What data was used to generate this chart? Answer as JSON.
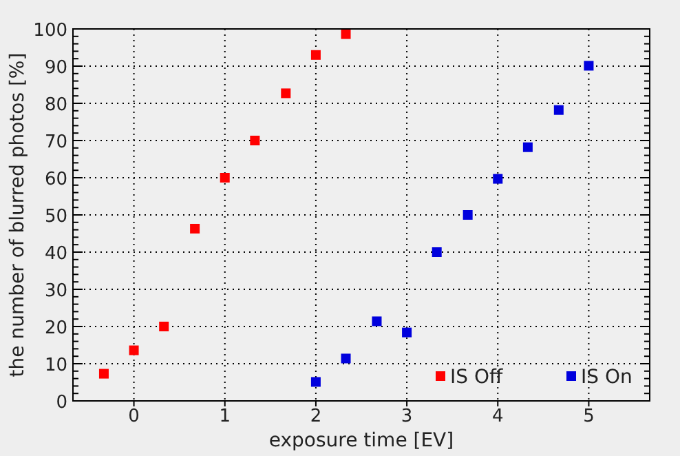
{
  "chart_data": {
    "type": "scatter",
    "xlabel": "exposure time [EV]",
    "ylabel": "the number of blurred photos [%]",
    "xlim": [
      -0.67,
      5.67
    ],
    "xticks": [
      0,
      1,
      2,
      3,
      4,
      5
    ],
    "ylim": [
      0,
      100
    ],
    "yticks": [
      0,
      10,
      20,
      30,
      40,
      50,
      60,
      70,
      80,
      90,
      100
    ],
    "grid": true,
    "legend": "bottom right",
    "marker": "square",
    "series": [
      {
        "name": "IS Off",
        "color": "#ff0000",
        "x": [
          -0.33,
          0,
          0.33,
          0.67,
          1,
          1.33,
          1.67,
          2,
          2.33
        ],
        "values": [
          7.3,
          13.6,
          20,
          46.3,
          60,
          70,
          82.7,
          93,
          98.6
        ]
      },
      {
        "name": "IS On",
        "color": "#0000dd",
        "x": [
          2,
          2.33,
          2.67,
          3,
          3.33,
          3.67,
          4,
          4.33,
          4.67,
          5
        ],
        "values": [
          5.1,
          11.4,
          21.4,
          18.4,
          40,
          50,
          59.7,
          68.2,
          78.2,
          90.1
        ]
      }
    ]
  }
}
